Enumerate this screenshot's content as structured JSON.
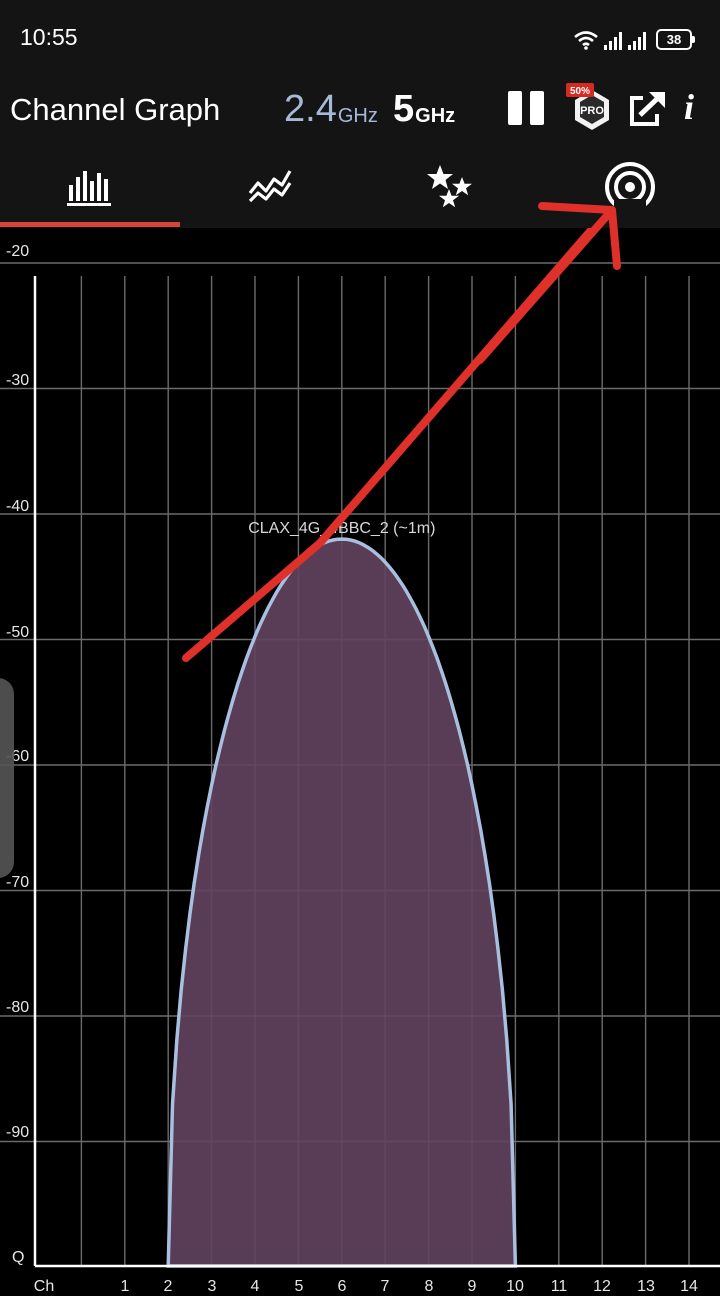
{
  "status": {
    "time": "10:55",
    "battery": "38"
  },
  "header": {
    "title": "Channel Graph",
    "band_24_num": "2.4",
    "band_24_unit": "GHz",
    "band_5_num": "5",
    "band_5_unit": "GHz",
    "pro_badge": "PRO",
    "pro_discount": "50%",
    "info_label": "i"
  },
  "tabs": [
    {
      "name": "channel-graph",
      "icon": "bar-graph-icon",
      "active": true
    },
    {
      "name": "time-graph",
      "icon": "time-graph-icon",
      "active": false
    },
    {
      "name": "channel-rating",
      "icon": "stars-icon",
      "active": false
    },
    {
      "name": "access-points",
      "icon": "broadcast-icon",
      "active": false
    }
  ],
  "chart_data": {
    "type": "area",
    "y_tick_labels": [
      "-20",
      "-30",
      "-40",
      "-50",
      "-60",
      "-70",
      "-80",
      "-90"
    ],
    "y_bottom_label": "Q",
    "x_label": "Ch",
    "x_tick_labels": [
      "1",
      "2",
      "3",
      "4",
      "5",
      "6",
      "7",
      "8",
      "9",
      "10",
      "11",
      "12",
      "13",
      "14"
    ],
    "ylim": [
      -99,
      -20
    ],
    "xlim": [
      0,
      15
    ],
    "grid": true,
    "series": [
      {
        "name": "CLAX_4G_4BBC_2 (~1m)",
        "channel": 7,
        "x_start": 3,
        "x_end": 11,
        "peak": -42,
        "fill": "#63445f",
        "stroke": "#a9bfe0"
      }
    ]
  },
  "colors": {
    "background": "#000000",
    "bar": "#141414",
    "accent": "#d6443c",
    "band_active": "#a6b9d9",
    "grid": "#6b6b6b",
    "annotation_arrow": "#e0302a"
  }
}
